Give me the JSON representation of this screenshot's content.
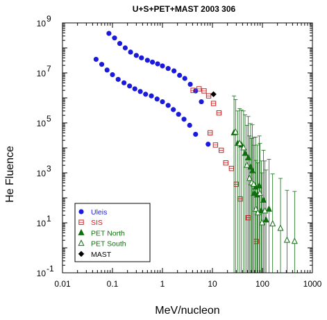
{
  "chart_data": {
    "type": "scatter",
    "title": "U+S+PET+MAST 2003 306",
    "xlabel": "MeV/nucleon",
    "ylabel": "He Fluence",
    "x_scale": "log",
    "y_scale": "log",
    "xlim": [
      0.01,
      1000
    ],
    "ylim": [
      0.1,
      1000000000
    ],
    "x_ticks": [
      {
        "value": 0.01,
        "label": "0.01"
      },
      {
        "value": 0.1,
        "label": "0.1"
      },
      {
        "value": 1,
        "label": "1"
      },
      {
        "value": 10,
        "label": "10"
      },
      {
        "value": 100,
        "label": "100"
      },
      {
        "value": 1000,
        "label": "1000"
      }
    ],
    "y_ticks": [
      {
        "value": 0.1,
        "base": "10",
        "exp": "-1"
      },
      {
        "value": 10,
        "base": "10",
        "exp": "1"
      },
      {
        "value": 1000,
        "base": "10",
        "exp": "3"
      },
      {
        "value": 100000,
        "base": "10",
        "exp": "5"
      },
      {
        "value": 10000000,
        "base": "10",
        "exp": "7"
      },
      {
        "value": 1000000000,
        "base": "10",
        "exp": "9"
      }
    ],
    "grid": false,
    "legend_position": "bottom-left",
    "series": [
      {
        "name": "Uleis",
        "color": "#1a1adc",
        "text_color": "#1a1adc",
        "marker": "circle-filled",
        "points": [
          [
            0.085,
            380000000.0
          ],
          [
            0.11,
            250000000.0
          ],
          [
            0.14,
            150000000.0
          ],
          [
            0.18,
            100000000.0
          ],
          [
            0.23,
            68000000.0
          ],
          [
            0.3,
            50000000.0
          ],
          [
            0.38,
            40000000.0
          ],
          [
            0.5,
            32000000.0
          ],
          [
            0.63,
            27000000.0
          ],
          [
            0.8,
            23000000.0
          ],
          [
            1.0,
            19000000.0
          ],
          [
            1.3,
            15000000.0
          ],
          [
            1.7,
            12000000.0
          ],
          [
            2.2,
            8000000.0
          ],
          [
            2.8,
            6000000.0
          ],
          [
            3.6,
            3500000.0
          ],
          [
            4.6,
            1900000.0
          ],
          [
            6.0,
            700000.0
          ],
          [
            0.047,
            35000000.0
          ],
          [
            0.061,
            22000000.0
          ],
          [
            0.078,
            13000000.0
          ],
          [
            0.1,
            8500000.0
          ],
          [
            0.13,
            5500000.0
          ],
          [
            0.17,
            4000000.0
          ],
          [
            0.22,
            3000000.0
          ],
          [
            0.28,
            2300000.0
          ],
          [
            0.36,
            1800000.0
          ],
          [
            0.46,
            1400000.0
          ],
          [
            0.6,
            1200000.0
          ],
          [
            0.78,
            900000.0
          ],
          [
            1.0,
            700000.0
          ],
          [
            1.3,
            500000.0
          ],
          [
            1.65,
            340000.0
          ],
          [
            2.1,
            220000.0
          ],
          [
            2.7,
            140000.0
          ],
          [
            3.5,
            80000.0
          ],
          [
            4.6,
            35000.0
          ],
          [
            8.2,
            14000.0
          ]
        ]
      },
      {
        "name": "SIS",
        "color": "#d02020",
        "text_color": "#d02020",
        "marker": "square-open",
        "points": [
          [
            4.1,
            2000000.0
          ],
          [
            5.4,
            2300000.0
          ],
          [
            6.8,
            1900000.0
          ],
          [
            8.4,
            1200000.0
          ],
          [
            10.5,
            600000.0
          ],
          [
            13.5,
            250000.0
          ],
          [
            9.0,
            40000.0
          ],
          [
            11.5,
            13000.0
          ],
          [
            15.0,
            8000.0
          ],
          [
            18.5,
            2500.0
          ],
          [
            24.0,
            1500.0
          ],
          [
            30.0,
            350.0
          ],
          [
            36.0,
            90.0
          ],
          [
            52.0,
            16.0
          ],
          [
            75.0,
            1.8
          ]
        ]
      },
      {
        "name": "PET North",
        "color": "#0f6e0f",
        "text_color": "#0f6e0f",
        "marker": "triangle-filled",
        "points": [
          [
            27,
            40000.0,
            30
          ],
          [
            32,
            15000.0,
            20
          ],
          [
            38,
            13000.0,
            25
          ],
          [
            45,
            6000.0,
            35
          ],
          [
            52,
            4000.0,
            45
          ],
          [
            58,
            1700.0,
            55
          ],
          [
            63,
            1200.0,
            70
          ],
          [
            68,
            150.0,
            85
          ],
          [
            73,
            270.0,
            100
          ],
          [
            79,
            130.0,
            100
          ],
          [
            87,
            300.0,
            100
          ],
          [
            95,
            30.0,
            100
          ],
          [
            105,
            80.0,
            100
          ],
          [
            118,
            13.0,
            100
          ],
          [
            135,
            35.0,
            100
          ]
        ]
      },
      {
        "name": "PET South",
        "color": "#0f6e0f",
        "text_color": "#0f6e0f",
        "marker": "triangle-open",
        "points": [
          [
            29,
            43000.0,
            20
          ],
          [
            35,
            15000.0,
            25
          ],
          [
            42,
            10000.0,
            30
          ],
          [
            49,
            2000.0,
            40
          ],
          [
            55,
            600.0,
            50
          ],
          [
            61,
            400.0,
            60
          ],
          [
            67,
            350.0,
            75
          ],
          [
            74,
            35.0,
            90
          ],
          [
            81,
            25.0,
            100
          ],
          [
            89,
            150.0,
            100
          ],
          [
            98,
            10.0,
            100
          ],
          [
            112,
            30.0,
            100
          ],
          [
            160,
            9.0,
            100
          ],
          [
            230,
            6.0,
            100
          ],
          [
            310,
            2.0,
            100
          ],
          [
            440,
            1.8,
            100
          ]
        ]
      },
      {
        "name": "MAST",
        "color": "#000000",
        "text_color": "#000000",
        "marker": "diamond-filled",
        "points": [
          [
            10.5,
            1400000.0
          ]
        ]
      }
    ]
  }
}
